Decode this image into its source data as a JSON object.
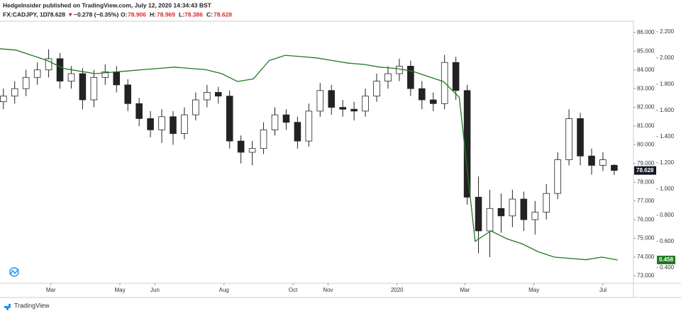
{
  "header": {
    "title": "HedgeInsider published on TradingView.com, July 12, 2020 14:34:43 BST"
  },
  "legend": {
    "symbol": "FX:CADJPY, 1D",
    "last": "78.628",
    "arrow": "▼",
    "change": "−0.278 (−0.35%)",
    "o_key": "O:",
    "o": "78.906",
    "h_key": "H:",
    "h": "78.969",
    "l_key": "L:",
    "l": "78.386",
    "c_key": "C:",
    "c": "78.628"
  },
  "footer": {
    "brand": "TradingView"
  },
  "chart_data": {
    "type": "candlestick",
    "xlim": [
      0,
      560
    ],
    "xticks": [
      {
        "value": 45,
        "label": "Mar"
      },
      {
        "value": 106,
        "label": "May"
      },
      {
        "value": 137,
        "label": "Jun"
      },
      {
        "value": 198,
        "label": "Aug"
      },
      {
        "value": 259,
        "label": "Oct"
      },
      {
        "value": 290,
        "label": "Nov"
      },
      {
        "value": 351,
        "label": "2020"
      },
      {
        "value": 411,
        "label": "Mar"
      },
      {
        "value": 472,
        "label": "May"
      },
      {
        "value": 533,
        "label": "Jul"
      }
    ],
    "ylim": [
      72.6,
      86.6
    ],
    "yticks": [
      {
        "value": 73,
        "label": "73.000"
      },
      {
        "value": 74,
        "label": "74.000"
      },
      {
        "value": 75,
        "label": "75.000"
      },
      {
        "value": 76,
        "label": "76.000"
      },
      {
        "value": 77,
        "label": "77.000"
      },
      {
        "value": 78,
        "label": "78.000"
      },
      {
        "value": 79,
        "label": "79.000"
      },
      {
        "value": 80,
        "label": "80.000"
      },
      {
        "value": 81,
        "label": "81.000"
      },
      {
        "value": 82,
        "label": "82.000"
      },
      {
        "value": 83,
        "label": "83.000"
      },
      {
        "value": 84,
        "label": "84.000"
      },
      {
        "value": 85,
        "label": "85.000"
      },
      {
        "value": 86,
        "label": "86.000"
      }
    ],
    "y2lim": [
      0.28,
      2.28
    ],
    "y2ticks": [
      {
        "value": 0.4,
        "label": "0.400"
      },
      {
        "value": 0.6,
        "label": "0.600"
      },
      {
        "value": 0.8,
        "label": "0.800"
      },
      {
        "value": 1.0,
        "label": "1.000"
      },
      {
        "value": 1.2,
        "label": "1.200"
      },
      {
        "value": 1.4,
        "label": "1.400"
      },
      {
        "value": 1.6,
        "label": "1.600"
      },
      {
        "value": 1.8,
        "label": "1.800"
      },
      {
        "value": 2.0,
        "label": "2.000"
      },
      {
        "value": 2.2,
        "label": "2.200"
      }
    ],
    "candles": {
      "x": [
        3,
        13,
        23,
        33,
        43,
        53,
        63,
        73,
        83,
        93,
        103,
        113,
        123,
        133,
        143,
        153,
        163,
        173,
        183,
        193,
        203,
        213,
        223,
        233,
        243,
        253,
        263,
        273,
        283,
        293,
        303,
        313,
        323,
        333,
        343,
        353,
        363,
        373,
        383,
        393,
        403,
        413,
        423,
        433,
        443,
        453,
        463,
        473,
        483,
        493,
        503,
        513,
        523,
        533,
        543
      ],
      "open": [
        82.3,
        82.6,
        83.0,
        83.6,
        84.0,
        84.6,
        83.4,
        83.8,
        82.4,
        83.6,
        83.9,
        83.2,
        82.2,
        81.4,
        80.8,
        81.5,
        80.6,
        81.6,
        82.4,
        82.8,
        82.6,
        80.2,
        79.6,
        79.8,
        80.8,
        81.6,
        81.2,
        80.2,
        81.8,
        82.9,
        82.0,
        81.9,
        81.8,
        82.6,
        83.4,
        83.8,
        84.2,
        83.0,
        82.4,
        82.2,
        84.4,
        82.9,
        77.2,
        75.4,
        76.6,
        76.2,
        77.1,
        76.0,
        76.4,
        77.4,
        79.2,
        81.4,
        79.4,
        78.9,
        78.906
      ],
      "high": [
        83.0,
        83.4,
        84.0,
        84.4,
        85.1,
        84.9,
        84.2,
        84.1,
        84.0,
        84.3,
        84.2,
        83.5,
        82.5,
        81.8,
        81.9,
        81.8,
        82.0,
        82.8,
        83.2,
        83.1,
        82.9,
        80.5,
        80.2,
        81.2,
        82.0,
        81.9,
        81.5,
        82.2,
        83.3,
        83.2,
        82.4,
        82.3,
        83.0,
        83.8,
        84.2,
        84.6,
        84.5,
        83.4,
        82.8,
        84.8,
        84.7,
        83.2,
        78.3,
        77.6,
        77.4,
        77.6,
        77.5,
        77.0,
        77.9,
        79.6,
        81.9,
        81.7,
        79.8,
        79.6,
        78.969
      ],
      "low": [
        81.9,
        82.2,
        82.6,
        83.2,
        83.6,
        83.0,
        83.0,
        81.9,
        82.0,
        83.2,
        82.8,
        81.8,
        81.0,
        80.4,
        80.1,
        80.0,
        80.3,
        81.3,
        82.0,
        82.2,
        79.8,
        79.0,
        78.9,
        79.5,
        80.5,
        80.8,
        79.8,
        79.9,
        81.5,
        81.6,
        81.5,
        81.3,
        81.5,
        82.3,
        83.0,
        83.4,
        82.6,
        81.9,
        81.8,
        81.9,
        82.4,
        76.8,
        74.2,
        74.0,
        75.3,
        75.6,
        75.4,
        75.2,
        76.0,
        77.1,
        78.9,
        78.9,
        78.4,
        78.6,
        78.386
      ],
      "close": [
        82.6,
        83.0,
        83.6,
        84.0,
        84.6,
        83.4,
        83.8,
        82.4,
        83.6,
        83.9,
        83.2,
        82.2,
        81.4,
        80.8,
        81.5,
        80.6,
        81.6,
        82.4,
        82.8,
        82.6,
        80.2,
        79.6,
        79.8,
        80.8,
        81.6,
        81.2,
        80.2,
        81.8,
        82.9,
        82.0,
        81.9,
        81.8,
        82.6,
        83.4,
        83.8,
        84.2,
        83.0,
        82.4,
        82.2,
        84.4,
        82.9,
        77.2,
        75.4,
        76.6,
        76.2,
        77.1,
        76.0,
        76.4,
        77.4,
        79.2,
        81.4,
        79.4,
        78.9,
        79.2,
        78.628
      ],
      "last_label": "78.628"
    },
    "series": [
      {
        "axis": "y2",
        "color": "#1e7a1e",
        "x": [
          0,
          14,
          28,
          42,
          56,
          70,
          84,
          98,
          112,
          126,
          140,
          154,
          168,
          182,
          196,
          210,
          224,
          238,
          252,
          266,
          280,
          294,
          308,
          322,
          336,
          350,
          364,
          378,
          392,
          406,
          420,
          434,
          448,
          462,
          476,
          490,
          504,
          518,
          532,
          546
        ],
        "values": [
          2.07,
          2.06,
          2.02,
          1.98,
          1.92,
          1.9,
          1.88,
          1.89,
          1.9,
          1.91,
          1.92,
          1.93,
          1.92,
          1.91,
          1.88,
          1.82,
          1.84,
          1.98,
          2.02,
          2.01,
          2.0,
          1.98,
          1.96,
          1.95,
          1.93,
          1.92,
          1.9,
          1.86,
          1.82,
          1.7,
          0.6,
          0.68,
          0.62,
          0.58,
          0.52,
          0.48,
          0.47,
          0.46,
          0.48,
          0.458
        ],
        "last_label": "0.458"
      }
    ]
  }
}
